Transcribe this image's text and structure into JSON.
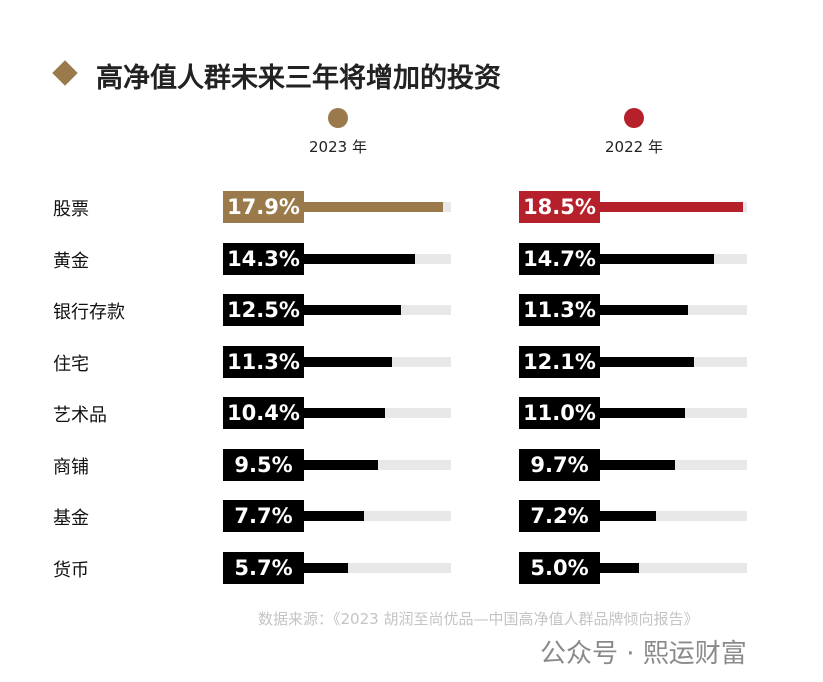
{
  "chart_data": {
    "type": "bar",
    "title": "高净值人群未来三年将增加的投资",
    "categories": [
      "股票",
      "黄金",
      "银行存款",
      "住宅",
      "艺术品",
      "商铺",
      "基金",
      "货币"
    ],
    "series": [
      {
        "name": "2023 年",
        "color": "#9a7a4a",
        "values": [
          17.9,
          14.3,
          12.5,
          11.3,
          10.4,
          9.5,
          7.7,
          5.7
        ]
      },
      {
        "name": "2022 年",
        "color": "#b5202a",
        "values": [
          18.5,
          14.7,
          11.3,
          12.1,
          11.0,
          9.7,
          7.2,
          5.0
        ]
      }
    ],
    "value_suffix": "%",
    "xlim": [
      0,
      19
    ],
    "highlight_first_row": true
  },
  "source": "数据来源：《2023 胡润至尚优品—中国高净值人群品牌倾向报告》",
  "watermark": "公众号 · 熙运财富"
}
